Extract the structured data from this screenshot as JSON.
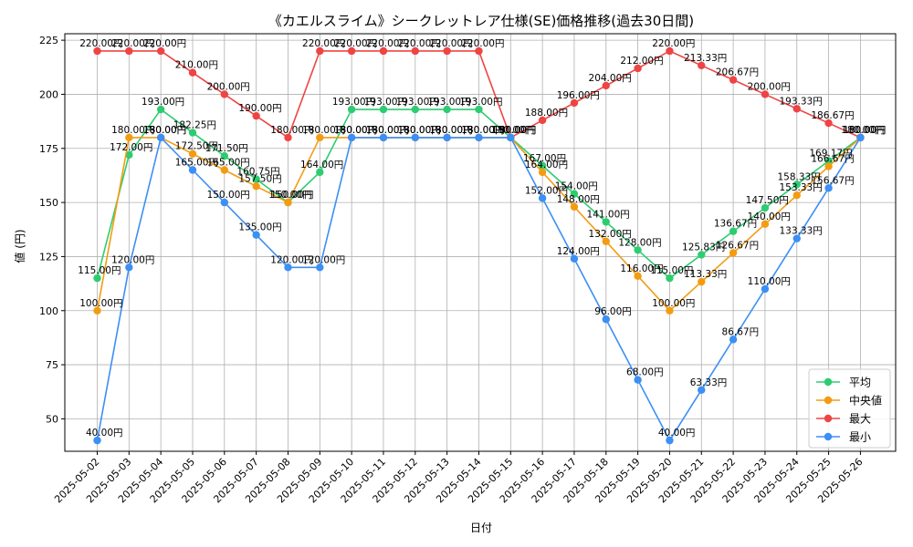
{
  "chart_data": {
    "type": "line",
    "title": "《カエルスライム》シークレットレア仕様(SE)価格推移(過去30日間)",
    "xlabel": "日付",
    "ylabel": "値 (円)",
    "ylim": [
      35,
      228
    ],
    "yticks": [
      50,
      75,
      100,
      125,
      150,
      175,
      200,
      225
    ],
    "grid": true,
    "legend_position": "lower-right",
    "label_suffix": "円",
    "categories": [
      "2025-05-02",
      "2025-05-03",
      "2025-05-04",
      "2025-05-05",
      "2025-05-06",
      "2025-05-07",
      "2025-05-08",
      "2025-05-09",
      "2025-05-10",
      "2025-05-11",
      "2025-05-12",
      "2025-05-13",
      "2025-05-14",
      "2025-05-15",
      "2025-05-16",
      "2025-05-17",
      "2025-05-18",
      "2025-05-19",
      "2025-05-20",
      "2025-05-21",
      "2025-05-22",
      "2025-05-23",
      "2025-05-24",
      "2025-05-25",
      "2025-05-26"
    ],
    "series": [
      {
        "name": "平均",
        "color": "#2ecc71",
        "label_side": "right",
        "values": [
          115.0,
          172.0,
          193.0,
          182.25,
          171.5,
          160.75,
          150.0,
          164.0,
          193.0,
          193.0,
          193.0,
          193.0,
          193.0,
          180.0,
          167.0,
          154.0,
          141.0,
          128.0,
          115.0,
          125.83,
          136.67,
          147.5,
          158.33,
          169.17,
          180.0
        ]
      },
      {
        "name": "中央値",
        "color": "#f39c12",
        "label_side": "left",
        "values": [
          100.0,
          180.0,
          180.0,
          172.5,
          165.0,
          157.5,
          150.0,
          180.0,
          180.0,
          180.0,
          180.0,
          180.0,
          180.0,
          180.0,
          164.0,
          148.0,
          132.0,
          116.0,
          100.0,
          113.33,
          126.67,
          140.0,
          153.33,
          166.67,
          180.0
        ]
      },
      {
        "name": "最大",
        "color": "#ef4444",
        "label_side": "left",
        "values": [
          220.0,
          220.0,
          220.0,
          210.0,
          200.0,
          190.0,
          180.0,
          220.0,
          220.0,
          220.0,
          220.0,
          220.0,
          220.0,
          180.0,
          188.0,
          196.0,
          204.0,
          212.0,
          220.0,
          213.33,
          206.67,
          200.0,
          193.33,
          186.67,
          180.0
        ]
      },
      {
        "name": "最小",
        "color": "#3b8ff5",
        "label_side": "left",
        "values": [
          40.0,
          120.0,
          180.0,
          165.0,
          150.0,
          135.0,
          120.0,
          120.0,
          180.0,
          180.0,
          180.0,
          180.0,
          180.0,
          180.0,
          152.0,
          124.0,
          96.0,
          68.0,
          40.0,
          63.33,
          86.67,
          110.0,
          133.33,
          156.67,
          180.0
        ]
      }
    ]
  }
}
